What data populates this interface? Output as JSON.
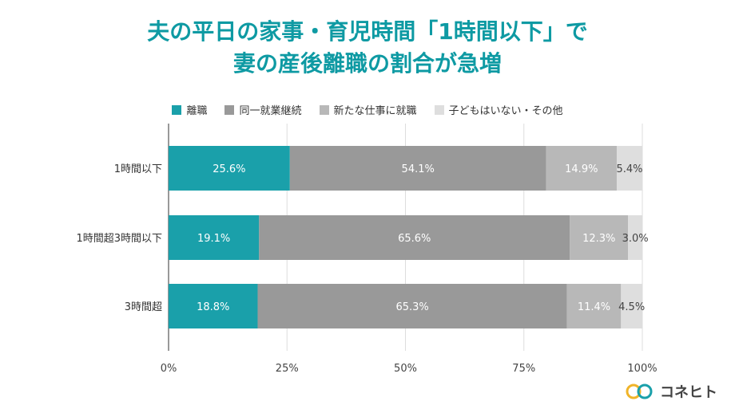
{
  "title_line1": "夫の平日の家事・育児時間「1時間以下」で",
  "title_line2": "妻の産後離職の割合が急増",
  "brand": "コネヒト",
  "chart_data": {
    "type": "bar",
    "orientation": "horizontal",
    "stacked": "percent",
    "categories": [
      "1時間以下",
      "1時間超3時間以下",
      "3時間超"
    ],
    "series": [
      {
        "name": "離職",
        "color": "#1aa0aa",
        "label_color": "#ffffff",
        "values": [
          25.6,
          19.1,
          18.8
        ]
      },
      {
        "name": "同一就業継続",
        "color": "#999999",
        "label_color": "#ffffff",
        "values": [
          54.1,
          65.6,
          65.3
        ]
      },
      {
        "name": "新たな仕事に就職",
        "color": "#b8b8b8",
        "label_color": "#ffffff",
        "values": [
          14.9,
          12.3,
          11.4
        ]
      },
      {
        "name": "子どもはいない・その他",
        "color": "#dedede",
        "label_color": "#444444",
        "values": [
          5.4,
          3.0,
          4.5
        ]
      }
    ],
    "data_labels": [
      [
        "25.6%",
        "54.1%",
        "14.9%",
        "5.4%"
      ],
      [
        "19.1%",
        "65.6%",
        "12.3%",
        "3.0%"
      ],
      [
        "18.8%",
        "65.3%",
        "11.4%",
        "4.5%"
      ]
    ],
    "x_ticks": [
      "0%",
      "25%",
      "50%",
      "75%",
      "100%"
    ],
    "xlim": [
      0,
      100
    ],
    "grid": true,
    "legend_position": "top"
  }
}
